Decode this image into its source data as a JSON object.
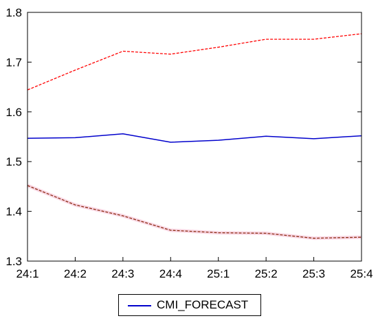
{
  "chart_data": {
    "type": "line",
    "categories": [
      "24:1",
      "24:2",
      "24:3",
      "24:4",
      "25:1",
      "25:2",
      "25:3",
      "25:4"
    ],
    "ylim": [
      1.3,
      1.8
    ],
    "yticks": [
      "1.3",
      "1.4",
      "1.5",
      "1.6",
      "1.7",
      "1.8"
    ],
    "grid": false,
    "legend_position": "bottom-center",
    "series": [
      {
        "name": "CMI_FORECAST",
        "color": "#0000cc",
        "style": "solid",
        "values": [
          1.547,
          1.548,
          1.556,
          1.539,
          1.543,
          1.551,
          1.546,
          1.552
        ]
      },
      {
        "color": "#ff0000",
        "style": "dashed",
        "values": [
          1.644,
          1.684,
          1.722,
          1.716,
          1.73,
          1.746,
          1.746,
          1.757
        ]
      },
      {
        "color": "#8b2a10",
        "style": "dashed",
        "values": [
          1.452,
          1.413,
          1.391,
          1.362,
          1.357,
          1.356,
          1.346,
          1.348
        ]
      }
    ]
  }
}
